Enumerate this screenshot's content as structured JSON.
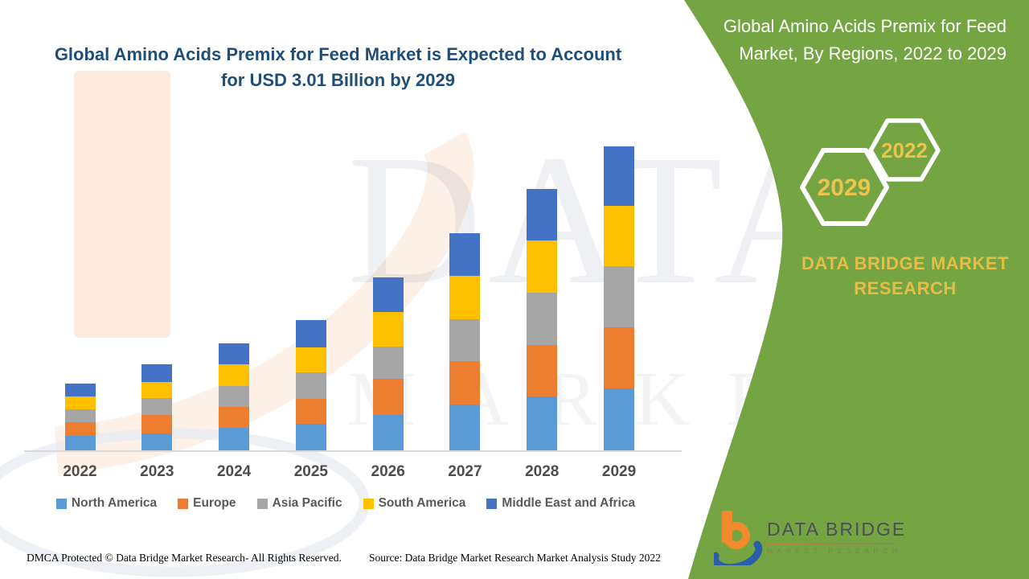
{
  "main_title": {
    "text": "Global Amino Acids Premix for Feed Market is Expected to Account for USD 3.01 Billion by 2029",
    "color": "#1F4E79"
  },
  "side_panel": {
    "bg_color": "#71A13C",
    "title": "Global Amino Acids Premix for Feed Market, By Regions, 2022 to 2029",
    "hexagons": [
      {
        "label": "2022"
      },
      {
        "label": "2029"
      }
    ],
    "brand": "DATA BRIDGE MARKET RESEARCH",
    "accent_gold": "#E4BE49"
  },
  "watermark": {
    "row1": "DATA BRIDGE",
    "row2": "MARKET RESEARCH"
  },
  "chart_data": {
    "type": "bar",
    "stacked": true,
    "title": "Global Amino Acids Premix for Feed Market is Expected to Account for USD 3.01 Billion by 2029",
    "unit": "USD Billion",
    "categories": [
      "2022",
      "2023",
      "2024",
      "2025",
      "2026",
      "2027",
      "2028",
      "2029"
    ],
    "series": [
      {
        "name": "North America",
        "color": "#5B9BD5",
        "values": [
          0.14,
          0.17,
          0.22,
          0.26,
          0.35,
          0.45,
          0.53,
          0.61
        ]
      },
      {
        "name": "Europe",
        "color": "#ED7D31",
        "values": [
          0.14,
          0.18,
          0.21,
          0.25,
          0.36,
          0.43,
          0.51,
          0.61
        ]
      },
      {
        "name": "Asia Pacific",
        "color": "#A6A6A6",
        "values": [
          0.13,
          0.17,
          0.21,
          0.26,
          0.32,
          0.42,
          0.52,
          0.6
        ]
      },
      {
        "name": "South America",
        "color": "#FFC000",
        "values": [
          0.12,
          0.16,
          0.21,
          0.25,
          0.34,
          0.43,
          0.52,
          0.6
        ]
      },
      {
        "name": "Middle East and Africa",
        "color": "#4472C4",
        "values": [
          0.13,
          0.17,
          0.21,
          0.27,
          0.34,
          0.42,
          0.51,
          0.59
        ]
      }
    ],
    "totals": [
      0.66,
      0.85,
      1.06,
      1.29,
      1.71,
      2.15,
      2.59,
      3.01
    ],
    "ylim": [
      0,
      3.2
    ],
    "y_axis_visible": false,
    "gridlines": false,
    "legend_position": "bottom"
  },
  "footer": {
    "left": "DMCA Protected © Data Bridge Market Research- All Rights Reserved.",
    "source": "Source: Data Bridge Market Research Market Analysis Study 2022"
  },
  "logo": {
    "mark_letter": "b",
    "name": "DATA BRIDGE",
    "sub": "MARKET RESEARCH"
  }
}
